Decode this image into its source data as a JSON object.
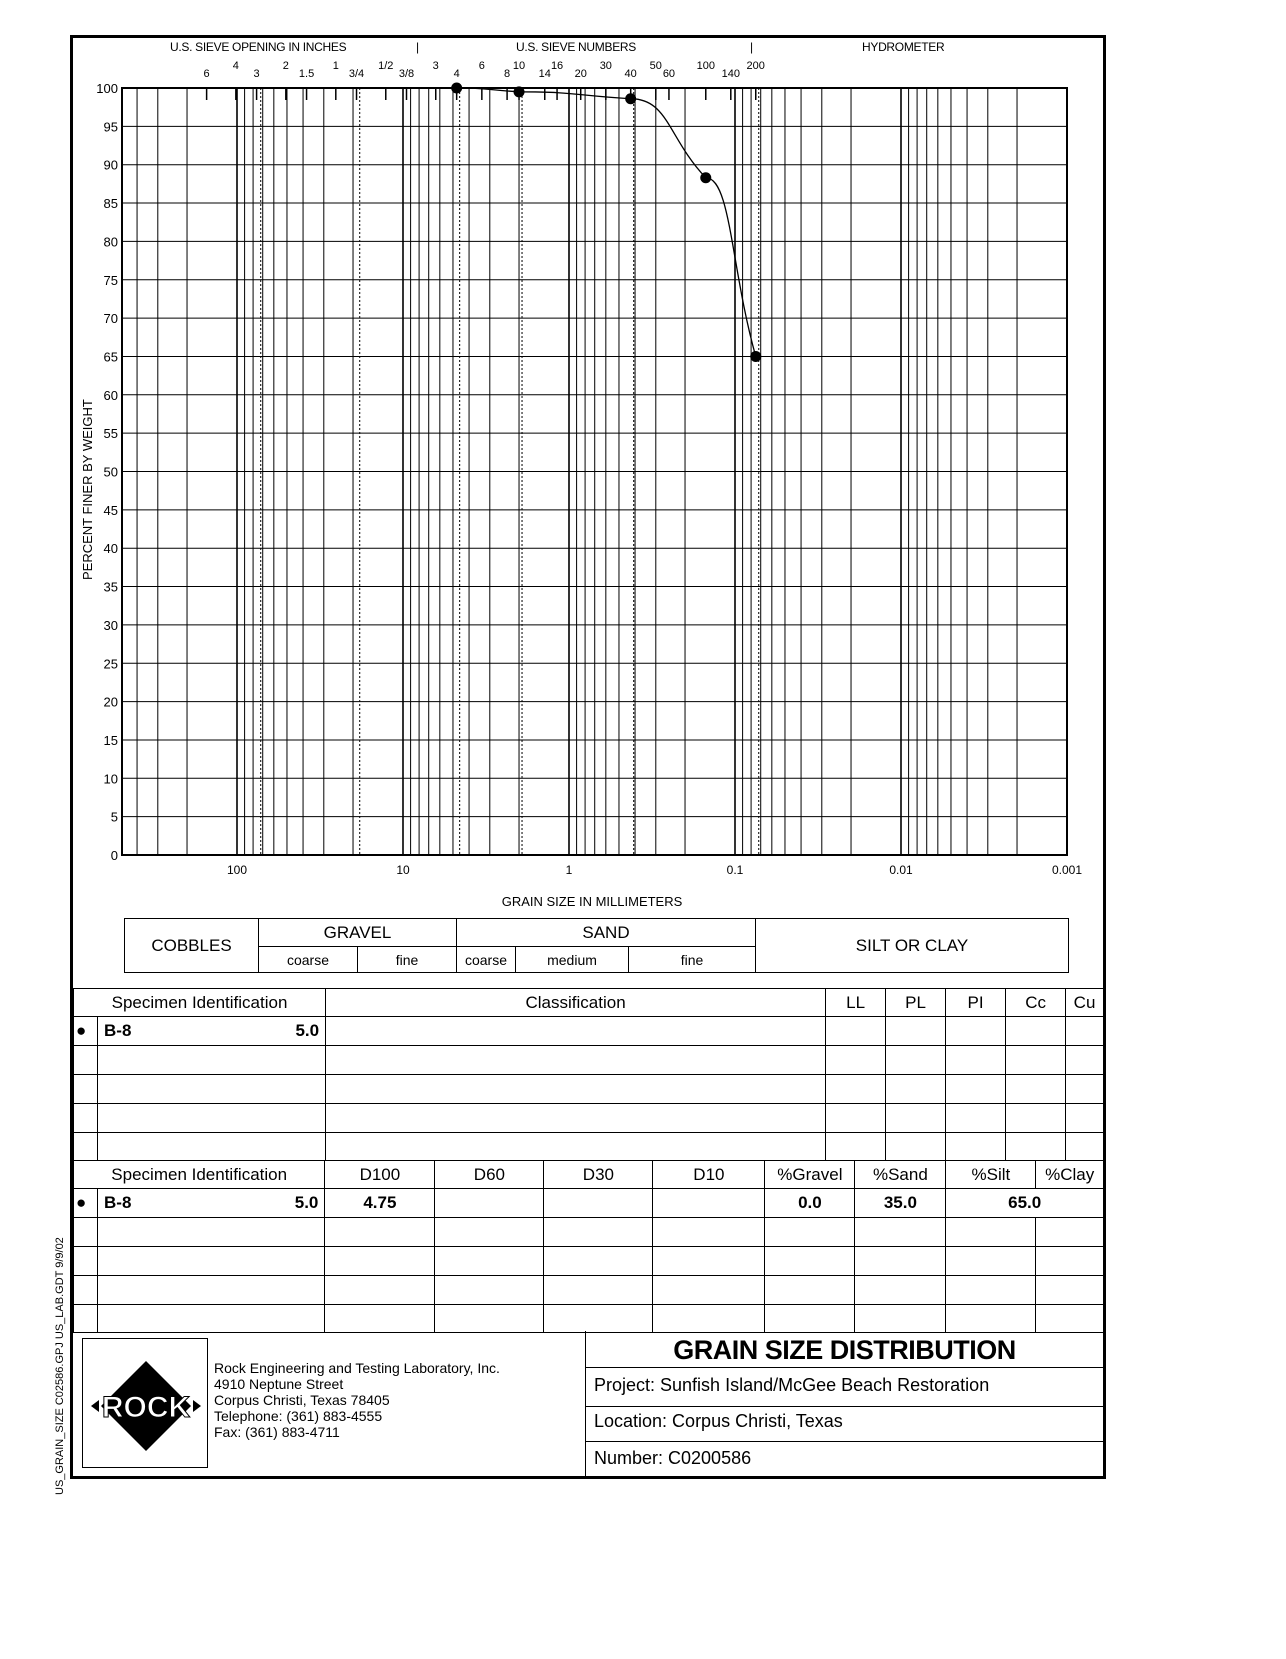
{
  "chart_data": {
    "type": "line",
    "title": "GRAIN SIZE DISTRIBUTION",
    "xlabel": "GRAIN SIZE IN MILLIMETERS",
    "ylabel": "PERCENT FINER BY WEIGHT",
    "x_scale": "log",
    "x_reversed": true,
    "xlim": [
      500,
      0.001
    ],
    "ylim": [
      0,
      100
    ],
    "x_ticks": [
      "100",
      "10",
      "1",
      "0.1",
      "0.01",
      "0.001"
    ],
    "y_ticks": [
      "0",
      "5",
      "10",
      "15",
      "20",
      "25",
      "30",
      "35",
      "40",
      "45",
      "50",
      "55",
      "60",
      "65",
      "70",
      "75",
      "80",
      "85",
      "90",
      "95",
      "100"
    ],
    "grid": true,
    "top_axis": {
      "section_labels": [
        "U.S. SIEVE OPENING IN INCHES",
        "U.S. SIEVE NUMBERS",
        "HYDROMETER"
      ],
      "sieves": [
        {
          "label": "6",
          "size_mm": 152.4
        },
        {
          "label": "4",
          "size_mm": 101.6
        },
        {
          "label": "3",
          "size_mm": 76.2
        },
        {
          "label": "2",
          "size_mm": 50.8
        },
        {
          "label": "1.5",
          "size_mm": 38.1
        },
        {
          "label": "1",
          "size_mm": 25.4
        },
        {
          "label": "3/4",
          "size_mm": 19.05
        },
        {
          "label": "1/2",
          "size_mm": 12.7
        },
        {
          "label": "3/8",
          "size_mm": 9.525
        },
        {
          "label": "3",
          "size_mm": 6.35
        },
        {
          "label": "4",
          "size_mm": 4.75
        },
        {
          "label": "6",
          "size_mm": 3.35
        },
        {
          "label": "8",
          "size_mm": 2.36
        },
        {
          "label": "10",
          "size_mm": 2.0
        },
        {
          "label": "14",
          "size_mm": 1.4
        },
        {
          "label": "16",
          "size_mm": 1.18
        },
        {
          "label": "20",
          "size_mm": 0.85
        },
        {
          "label": "30",
          "size_mm": 0.6
        },
        {
          "label": "40",
          "size_mm": 0.425
        },
        {
          "label": "50",
          "size_mm": 0.3
        },
        {
          "label": "60",
          "size_mm": 0.25
        },
        {
          "label": "100",
          "size_mm": 0.15
        },
        {
          "label": "140",
          "size_mm": 0.106
        },
        {
          "label": "200",
          "size_mm": 0.075
        }
      ]
    },
    "series": [
      {
        "name": "B-8",
        "marker": "circle",
        "x": [
          4.75,
          2.0,
          0.425,
          0.15,
          0.075
        ],
        "y": [
          100,
          99.5,
          98.6,
          88.3,
          65.0
        ]
      }
    ]
  },
  "classification": {
    "cobbles": "COBBLES",
    "gravel": "GRAVEL",
    "gravel_coarse": "coarse",
    "gravel_fine": "fine",
    "sand": "SAND",
    "sand_coarse": "coarse",
    "sand_medium": "medium",
    "sand_fine": "fine",
    "silt_clay": "SILT OR CLAY"
  },
  "table1": {
    "headers": [
      "Specimen Identification",
      "Classification",
      "LL",
      "PL",
      "PI",
      "Cc",
      "Cu"
    ],
    "rows": [
      {
        "marker": "●",
        "specimen": "B-8",
        "depth": "5.0"
      }
    ]
  },
  "table2": {
    "headers": [
      "Specimen Identification",
      "D100",
      "D60",
      "D30",
      "D10",
      "%Gravel",
      "%Sand",
      "%Silt",
      "%Clay"
    ],
    "rows": [
      {
        "marker": "●",
        "specimen": "B-8",
        "depth": "5.0",
        "d100": "4.75",
        "gravel": "0.0",
        "sand": "35.0",
        "silt_clay": "65.0"
      }
    ]
  },
  "footer": {
    "logo_text": "ROCK",
    "company": "Rock Engineering and Testing Laboratory, Inc.",
    "street": "4910 Neptune Street",
    "city": "Corpus Christi, Texas  78405",
    "phone": "Telephone:  (361) 883-4555",
    "fax": "Fax:  (361) 883-4711",
    "title": "GRAIN SIZE DISTRIBUTION",
    "project": "Project:  Sunfish Island/McGee Beach Restoration",
    "location": "Location:  Corpus Christi, Texas",
    "number": "Number:  C0200586"
  },
  "side_text": "US_GRAIN_SIZE  C02586.GPJ  US_LAB.GDT  9/9/02"
}
